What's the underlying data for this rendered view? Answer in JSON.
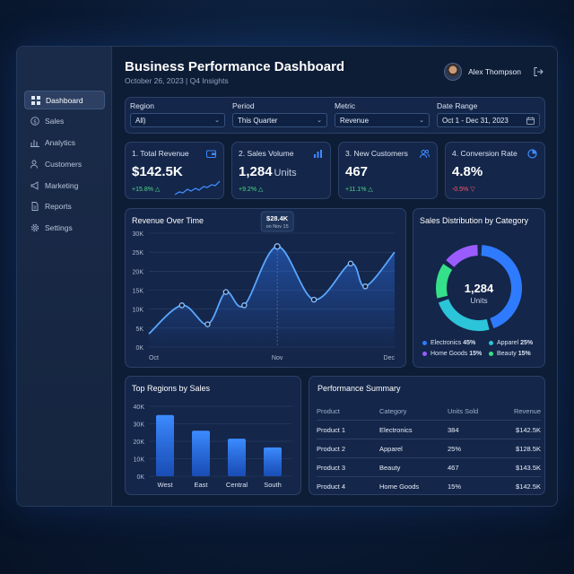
{
  "sidebar": {
    "items": [
      {
        "label": "Dashboard",
        "icon": "grid-icon",
        "active": true
      },
      {
        "label": "Sales",
        "icon": "dollar-icon"
      },
      {
        "label": "Analytics",
        "icon": "bar-chart-icon"
      },
      {
        "label": "Customers",
        "icon": "users-icon"
      },
      {
        "label": "Marketing",
        "icon": "megaphone-icon"
      },
      {
        "label": "Reports",
        "icon": "document-icon"
      },
      {
        "label": "Settings",
        "icon": "gear-icon"
      }
    ]
  },
  "header": {
    "title": "Business Performance Dashboard",
    "subtitle": "October 26, 2023 | Q4 Insights",
    "user_name": "Alex Thompson"
  },
  "filters": {
    "region": {
      "label": "Region",
      "value": "All)"
    },
    "period": {
      "label": "Period",
      "value": "This Quarter"
    },
    "metric": {
      "label": "Metric",
      "value": "Revenue"
    },
    "date_range": {
      "label": "Date Range",
      "value": "Oct 1 - Dec 31, 2023"
    }
  },
  "kpis": [
    {
      "label": "1. Total Revenue",
      "value": "$142.5K",
      "unit": "",
      "delta": "+15.8% △",
      "trend": "up"
    },
    {
      "label": "2. Sales Volume",
      "value": "1,284",
      "unit": "Units",
      "delta": "+9.2% △",
      "trend": "up"
    },
    {
      "label": "3. New Customers",
      "value": "467",
      "unit": "",
      "delta": "+11.1% △",
      "trend": "up"
    },
    {
      "label": "4. Conversion Rate",
      "value": "4.8%",
      "unit": "",
      "delta": "-0.5% ▽",
      "trend": "down"
    }
  ],
  "revenue_panel": {
    "title": "Revenue Over Time",
    "tooltip_value": "$28.4K",
    "tooltip_date": "on Nov 15"
  },
  "donut_panel": {
    "title": "Sales Distribution by Category",
    "center_value": "1,284",
    "center_unit": "Units",
    "legend": [
      {
        "label": "Electronics",
        "pct": "45%",
        "color": "#2f7bff"
      },
      {
        "label": "Apparel",
        "pct": "25%",
        "color": "#2bc4d8"
      },
      {
        "label": "Home Goods",
        "pct": "15%",
        "color": "#9b5cff"
      },
      {
        "label": "Beauty",
        "pct": "15%",
        "color": "#35e08a"
      }
    ]
  },
  "regions_panel": {
    "title": "Top Regions by Sales"
  },
  "summary": {
    "title": "Performance Summary",
    "columns": [
      "Product",
      "Category",
      "Units Sold",
      "Revenue"
    ],
    "rows": [
      [
        "Product 1",
        "Electronics",
        "384",
        "$142.5K"
      ],
      [
        "Product 2",
        "Apparel",
        "25%",
        "$128.5K"
      ],
      [
        "Product 3",
        "Beauty",
        "467",
        "$143.5K"
      ],
      [
        "Product 4",
        "Home Goods",
        "15%",
        "$142.5K"
      ]
    ]
  },
  "chart_data": [
    {
      "type": "line",
      "title": "Revenue Over Time",
      "x_tick_labels": [
        "Oct",
        "Nov",
        "Dec"
      ],
      "y_tick_labels": [
        "0K",
        "5K",
        "10K",
        "15K",
        "20K",
        "25K",
        "30K"
      ],
      "ylim": [
        0,
        30
      ],
      "x": [
        0,
        0.9,
        1.6,
        2.1,
        2.6,
        3.5,
        4.5,
        5.5,
        5.9,
        6.7
      ],
      "values": [
        3.5,
        11,
        6,
        14.5,
        11,
        26.5,
        12.5,
        22,
        16,
        25
      ],
      "grid": true
    },
    {
      "type": "pie",
      "title": "Sales Distribution by Category",
      "categories": [
        "Electronics",
        "Apparel",
        "Home Goods",
        "Beauty"
      ],
      "values": [
        45,
        25,
        15,
        15
      ]
    },
    {
      "type": "bar",
      "title": "Top Regions by Sales",
      "categories": [
        "West",
        "East",
        "Central",
        "South"
      ],
      "values": [
        35,
        26,
        21.5,
        16.5
      ],
      "y_tick_labels": [
        "0K",
        "10K",
        "20K",
        "30K",
        "40K"
      ],
      "ylim": [
        0,
        40
      ],
      "grid": true
    }
  ]
}
